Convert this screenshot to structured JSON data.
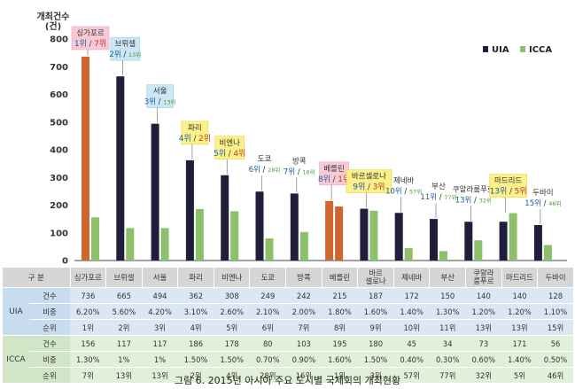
{
  "chart_data": {
    "type": "bar",
    "ylabel": "개최건수\n(건)",
    "ylim": [
      0,
      800
    ],
    "yticks": [
      0,
      100,
      200,
      300,
      400,
      500,
      600,
      700,
      800
    ],
    "categories": [
      "싱가포르",
      "브뤼셀",
      "서울",
      "파리",
      "비엔나",
      "도쿄",
      "방콕",
      "베를린",
      "바르셀로나",
      "제네바",
      "부산",
      "쿠알라룸푸르",
      "마드리드",
      "두바이"
    ],
    "series": [
      {
        "name": "UIA",
        "color": "#1f1f3a",
        "values": [
          736,
          665,
          494,
          362,
          308,
          249,
          242,
          215,
          187,
          172,
          150,
          140,
          140,
          128
        ]
      },
      {
        "name": "ICCA",
        "color": "#8cc06a",
        "values": [
          156,
          117,
          117,
          186,
          178,
          80,
          103,
          195,
          180,
          45,
          34,
          73,
          171,
          56
        ]
      }
    ],
    "highlight_colors": {
      "uia": "#d0662e",
      "icca": "#d0662e"
    },
    "highlight_indices": {
      "uia": [
        0,
        7
      ],
      "icca": [
        7
      ]
    },
    "annotations": [
      {
        "index": 0,
        "name": "싱가포르",
        "uia_rank": "1위",
        "icca_rank": "7위",
        "style": "pink",
        "big": true
      },
      {
        "index": 1,
        "name": "브뤼셀",
        "uia_rank": "2위",
        "icca_rank": "13위",
        "style": "blue",
        "big": false
      },
      {
        "index": 2,
        "name": "서울",
        "uia_rank": "3위",
        "icca_rank": "13위",
        "style": "blue",
        "big": false
      },
      {
        "index": 3,
        "name": "파리",
        "uia_rank": "4위",
        "icca_rank": "2위",
        "style": "yellow",
        "big": true
      },
      {
        "index": 4,
        "name": "비엔나",
        "uia_rank": "5위",
        "icca_rank": "4위",
        "style": "yellow",
        "big": true
      },
      {
        "index": 5,
        "name": "도쿄",
        "uia_rank": "6위",
        "icca_rank": "28위",
        "style": "none",
        "big": false
      },
      {
        "index": 6,
        "name": "방콕",
        "uia_rank": "7위",
        "icca_rank": "16위",
        "style": "none",
        "big": false
      },
      {
        "index": 7,
        "name": "베를린",
        "uia_rank": "8위",
        "icca_rank": "1위",
        "style": "pink",
        "big": true
      },
      {
        "index": 8,
        "name": "바르셀로나",
        "uia_rank": "9위",
        "icca_rank": "3위",
        "style": "yellow",
        "big": true
      },
      {
        "index": 9,
        "name": "제네바",
        "uia_rank": "10위",
        "icca_rank": "57위",
        "style": "none",
        "big": false
      },
      {
        "index": 10,
        "name": "부산",
        "uia_rank": "11위",
        "icca_rank": "77위",
        "style": "none",
        "big": false
      },
      {
        "index": 11,
        "name": "쿠알라룸푸르",
        "uia_rank": "13위",
        "icca_rank": "32위",
        "style": "none",
        "big": false
      },
      {
        "index": 12,
        "name": "마드리드",
        "uia_rank": "13위",
        "icca_rank": "5위",
        "style": "yellow",
        "big": true
      },
      {
        "index": 13,
        "name": "두바이",
        "uia_rank": "15위",
        "icca_rank": "46위",
        "style": "none",
        "big": false
      }
    ],
    "legend": {
      "placement": "top-right",
      "entries": [
        "UIA",
        "ICCA"
      ]
    },
    "grid": false
  },
  "table": {
    "header_label": "구 분",
    "columns": [
      "싱가포르",
      "브뤼셀",
      "서울",
      "파리",
      "비엔나",
      "도쿄",
      "방콕",
      "베를린",
      "바르\n셀로나",
      "제네바",
      "부산",
      "쿠알라\n룸푸르",
      "마드리드",
      "두바이"
    ],
    "groups": [
      {
        "name": "UIA",
        "cls": "uia",
        "rows": [
          {
            "metric": "건수",
            "values": [
              "736",
              "665",
              "494",
              "362",
              "308",
              "249",
              "242",
              "215",
              "187",
              "172",
              "150",
              "140",
              "140",
              "128"
            ]
          },
          {
            "metric": "비중",
            "values": [
              "6.20%",
              "5.60%",
              "4.20%",
              "3.10%",
              "2.60%",
              "2.10%",
              "2.00%",
              "1.80%",
              "1.60%",
              "1.40%",
              "1.30%",
              "1.20%",
              "1.20%",
              "1.10%"
            ]
          },
          {
            "metric": "순위",
            "values": [
              "1위",
              "2위",
              "3위",
              "4위",
              "5위",
              "6위",
              "7위",
              "8위",
              "9위",
              "10위",
              "11위",
              "13위",
              "13위",
              "15위"
            ]
          }
        ]
      },
      {
        "name": "ICCA",
        "cls": "icca",
        "rows": [
          {
            "metric": "건수",
            "values": [
              "156",
              "117",
              "117",
              "186",
              "178",
              "80",
              "103",
              "195",
              "180",
              "45",
              "34",
              "73",
              "171",
              "56"
            ]
          },
          {
            "metric": "비중",
            "values": [
              "1.30%",
              "1%",
              "1%",
              "1.50%",
              "1.50%",
              "0.70%",
              "0.90%",
              "1.60%",
              "1.50%",
              "0.40%",
              "0.30%",
              "0.60%",
              "1.40%",
              "0.50%"
            ]
          },
          {
            "metric": "순위",
            "values": [
              "7위",
              "13위",
              "13위",
              "2위",
              "4위",
              "28위",
              "16위",
              "1위",
              "3위",
              "57위",
              "77위",
              "32위",
              "5위",
              "46위"
            ]
          }
        ]
      }
    ]
  },
  "caption": "그림 6. 2015년 아시아 주요 도시별 국제회의 개최현황"
}
